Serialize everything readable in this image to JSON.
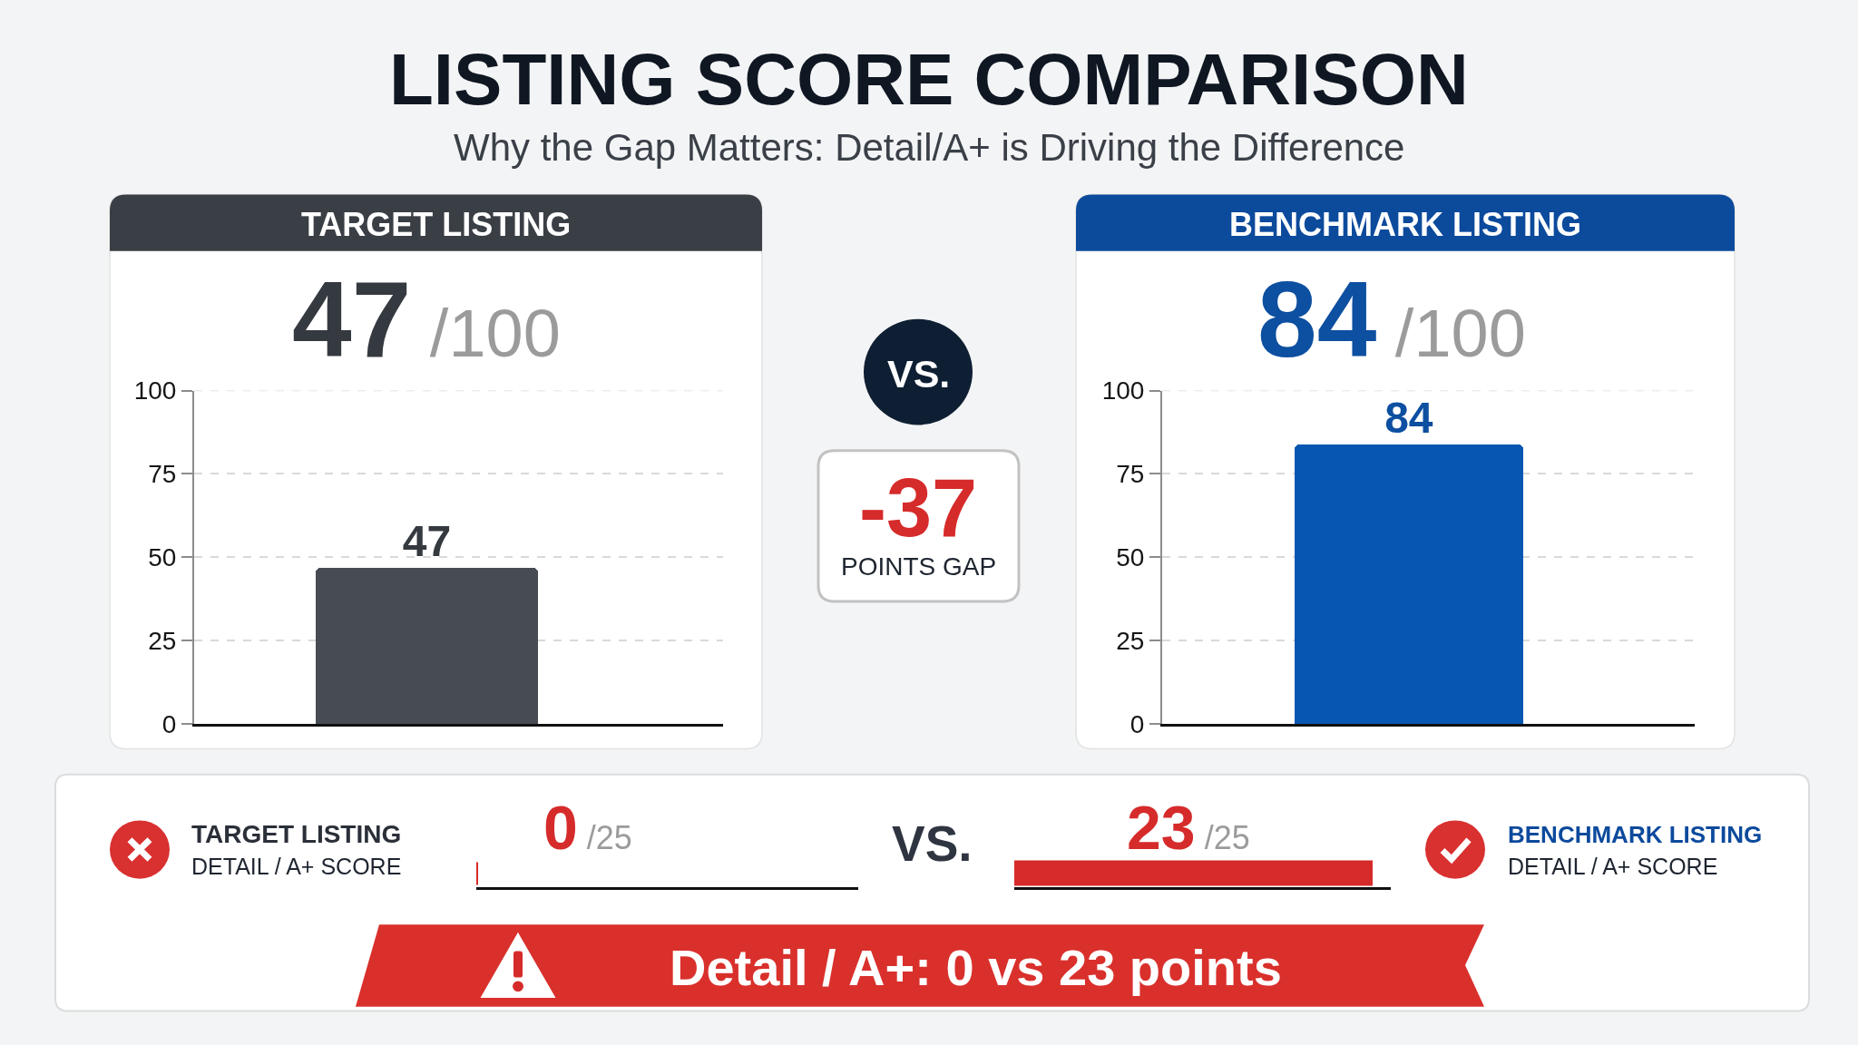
{
  "chart_data": [
    {
      "type": "other",
      "title": "LISTING SCORE COMPARISON",
      "subtitle": "Why the Gap Matters: Detail/A+ is Driving the Difference"
    },
    {
      "type": "bar",
      "title": "TARGET LISTING",
      "annotations": [
        "47/100"
      ],
      "categories": [
        null
      ],
      "values": [
        47
      ],
      "color": "#474c52",
      "ylim": [
        0,
        100
      ],
      "yticks": [
        0,
        25,
        50,
        75,
        100
      ],
      "grid": "y",
      "tick_labels": "y",
      "data_labels": true
    },
    {
      "type": "other",
      "annotations": [
        "VS.",
        "-37",
        "POINTS GAP"
      ]
    },
    {
      "type": "bar",
      "title": "BENCHMARK LISTING",
      "annotations": [
        "84/100"
      ],
      "categories": [
        null
      ],
      "values": [
        84
      ],
      "color": "#0757b2",
      "ylim": [
        0,
        100
      ],
      "yticks": [
        0,
        25,
        50,
        75,
        100
      ],
      "grid": "y",
      "tick_labels": "y",
      "data_labels": true
    },
    {
      "type": "other",
      "title": "TARGET LISTING",
      "subtitle": "DETAIL / A+ SCORE",
      "values": [
        0
      ],
      "value_labels": [
        "0/25"
      ],
      "color": "#d62b2b"
    },
    {
      "type": "other",
      "annotations": [
        "VS."
      ]
    },
    {
      "type": "other",
      "title": "BENCHMARK LISTING",
      "subtitle": "DETAIL / A+ SCORE",
      "values": [
        23
      ],
      "value_labels": [
        "23/25"
      ],
      "color": "#d62b2b"
    },
    {
      "type": "other",
      "annotations": [
        "Detail / A+: 0 vs 23 points"
      ]
    }
  ]
}
